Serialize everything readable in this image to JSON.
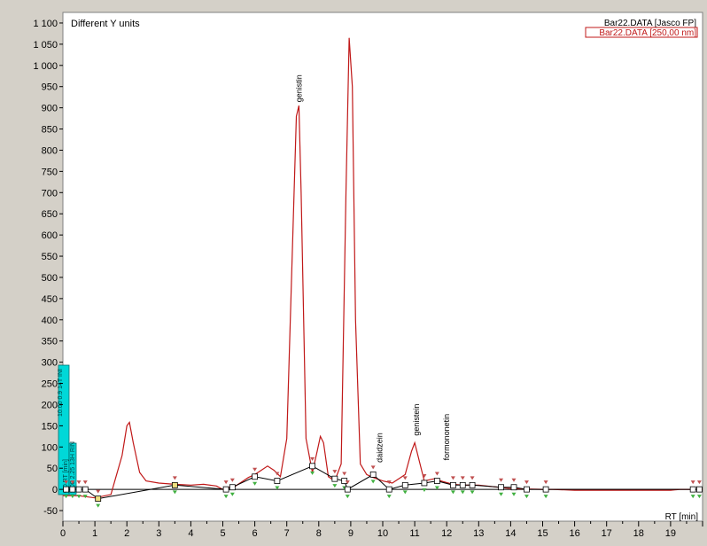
{
  "chart_data": {
    "type": "line",
    "title": "Different Y units",
    "xlabel": "RT [min]",
    "ylabel": "",
    "xlim": [
      0,
      20
    ],
    "ylim": [
      -75,
      1125
    ],
    "x_ticks": [
      "0",
      "1",
      "2",
      "3",
      "4",
      "5",
      "6",
      "7",
      "8",
      "9",
      "10",
      "11",
      "12",
      "13",
      "14",
      "15",
      "16",
      "17",
      "18",
      "19"
    ],
    "y_ticks": [
      "-50",
      "0",
      "50",
      "100",
      "150",
      "200",
      "250",
      "300",
      "350",
      "400",
      "450",
      "500",
      "550",
      "600",
      "650",
      "700",
      "750",
      "800",
      "850",
      "900",
      "950",
      "1 000",
      "1 050",
      "1 100"
    ],
    "grid": false,
    "legend": {
      "placement": "top-right",
      "entries": [
        "Bar22.DATA [Jasco FP]",
        "Bar22.DATA [250,00 nm]"
      ]
    },
    "colors": {
      "trace_250nm": "#c01818",
      "trace_fp": "#000000",
      "panel": "#00d8d8"
    },
    "series": [
      {
        "name": "Bar22.DATA [250,00 nm]",
        "x": [
          0,
          0.5,
          1.0,
          1.5,
          1.85,
          2.0,
          2.08,
          2.2,
          2.4,
          2.6,
          3.0,
          3.5,
          4.0,
          4.4,
          4.8,
          5.0,
          5.2,
          5.4,
          5.6,
          5.8,
          6.0,
          6.2,
          6.4,
          6.6,
          6.8,
          7.0,
          7.15,
          7.3,
          7.38,
          7.45,
          7.6,
          7.8,
          7.95,
          8.05,
          8.15,
          8.3,
          8.5,
          8.7,
          8.85,
          8.95,
          9.05,
          9.15,
          9.3,
          9.5,
          9.7,
          10.0,
          10.3,
          10.7,
          10.9,
          11.0,
          11.1,
          11.3,
          11.6,
          11.9,
          12.2,
          12.5,
          13.0,
          14.0,
          15.0,
          15.3,
          16.0,
          17.0,
          18.0,
          19.0,
          19.3,
          20.0
        ],
        "y": [
          -15,
          -15,
          -20,
          -12,
          80,
          150,
          158,
          110,
          40,
          20,
          15,
          12,
          10,
          12,
          8,
          0,
          5,
          8,
          18,
          28,
          35,
          45,
          55,
          45,
          30,
          120,
          500,
          880,
          905,
          700,
          120,
          40,
          90,
          125,
          110,
          30,
          20,
          60,
          700,
          1065,
          950,
          400,
          60,
          35,
          28,
          20,
          15,
          35,
          90,
          110,
          80,
          20,
          25,
          18,
          12,
          10,
          10,
          2,
          0,
          0,
          -2,
          -2,
          -2,
          -2,
          0,
          0
        ]
      },
      {
        "name": "Bar22.DATA [Jasco FP]",
        "x": [
          0.1,
          0.3,
          0.5,
          0.7,
          1.1,
          3.5,
          5.1,
          5.3,
          6.0,
          6.7,
          7.8,
          8.5,
          8.8,
          8.9,
          9.7,
          10.2,
          10.7,
          11.3,
          11.7,
          12.2,
          12.5,
          12.8,
          13.7,
          14.1,
          14.5,
          15.1,
          19.7,
          19.9
        ],
        "y": [
          0,
          0,
          0,
          0,
          -22,
          10,
          0,
          5,
          30,
          20,
          55,
          25,
          20,
          0,
          35,
          0,
          10,
          15,
          20,
          10,
          10,
          10,
          5,
          5,
          0,
          0,
          0,
          0
        ]
      }
    ],
    "annotations": [
      {
        "text": "genistin",
        "x": 7.38,
        "y": 905
      },
      {
        "text": "daidzein",
        "x": 9.9,
        "y": 55
      },
      {
        "text": "genistein",
        "x": 11.05,
        "y": 118
      },
      {
        "text": "formononetin",
        "x": 12.0,
        "y": 60
      }
    ],
    "panel_labels": [
      "0.0 RT [min]",
      "10.00 0.9 14T INI",
      "9.00 2.25 13H RIN"
    ]
  }
}
